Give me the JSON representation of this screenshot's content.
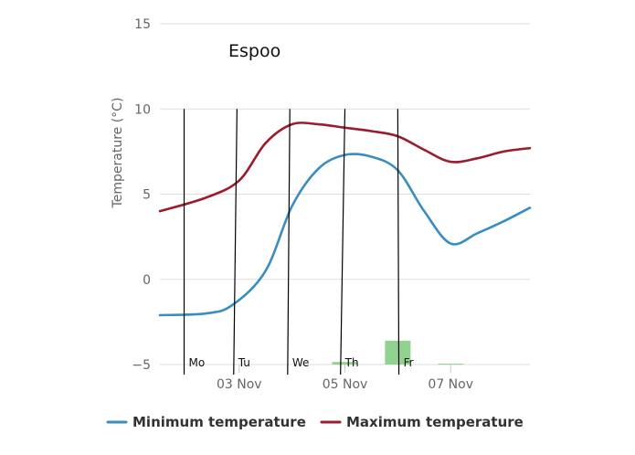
{
  "chart_data": {
    "type": "line",
    "title": "Espoo",
    "ylabel": "Temperature (°C)",
    "xlabel": "",
    "ylim": [
      -5,
      15
    ],
    "yticks": [
      15,
      10,
      5,
      0,
      -5
    ],
    "x_axis_start": "2023-11-01T12:00",
    "x_axis_end": "2023-11-08T12:00",
    "xticks": [
      {
        "date": "2023-11-03",
        "label": "03 Nov"
      },
      {
        "date": "2023-11-05",
        "label": "05 Nov"
      },
      {
        "date": "2023-11-07",
        "label": "07 Nov"
      }
    ],
    "grid": "horizontal",
    "legend_position": "bottom",
    "series": [
      {
        "name": "Minimum temperature",
        "color": "#3a8dc0",
        "points": [
          {
            "x": "2023-11-01T12:00",
            "y": -2.1
          },
          {
            "x": "2023-11-02T09:00",
            "y": -2.0
          },
          {
            "x": "2023-11-02T21:00",
            "y": -1.5
          },
          {
            "x": "2023-11-03T12:00",
            "y": 0.5
          },
          {
            "x": "2023-11-04T00:00",
            "y": 4.3
          },
          {
            "x": "2023-11-04T12:00",
            "y": 6.5
          },
          {
            "x": "2023-11-05T00:00",
            "y": 7.3
          },
          {
            "x": "2023-11-05T12:00",
            "y": 7.2
          },
          {
            "x": "2023-11-06T00:00",
            "y": 6.4
          },
          {
            "x": "2023-11-06T12:00",
            "y": 4.0
          },
          {
            "x": "2023-11-07T00:00",
            "y": 2.1
          },
          {
            "x": "2023-11-07T12:00",
            "y": 2.7
          },
          {
            "x": "2023-11-08T00:00",
            "y": 3.4
          },
          {
            "x": "2023-11-08T12:00",
            "y": 4.2
          }
        ]
      },
      {
        "name": "Maximum temperature",
        "color": "#9b1c2e",
        "points": [
          {
            "x": "2023-11-01T12:00",
            "y": 4.0
          },
          {
            "x": "2023-11-02T09:00",
            "y": 4.8
          },
          {
            "x": "2023-11-03T00:00",
            "y": 5.8
          },
          {
            "x": "2023-11-03T12:00",
            "y": 8.0
          },
          {
            "x": "2023-11-04T00:00",
            "y": 9.1
          },
          {
            "x": "2023-11-04T12:00",
            "y": 9.1
          },
          {
            "x": "2023-11-05T00:00",
            "y": 8.9
          },
          {
            "x": "2023-11-05T12:00",
            "y": 8.7
          },
          {
            "x": "2023-11-06T00:00",
            "y": 8.4
          },
          {
            "x": "2023-11-06T12:00",
            "y": 7.6
          },
          {
            "x": "2023-11-07T00:00",
            "y": 6.9
          },
          {
            "x": "2023-11-07T12:00",
            "y": 7.1
          },
          {
            "x": "2023-11-08T00:00",
            "y": 7.5
          },
          {
            "x": "2023-11-08T12:00",
            "y": 7.7
          }
        ]
      }
    ],
    "precipitation_bars": {
      "color": "#8fd38f",
      "bars": [
        {
          "x": "2023-11-05T00:00",
          "y_top": -4.85
        },
        {
          "x": "2023-11-06T00:00",
          "y_top": -3.6
        },
        {
          "x": "2023-11-07T00:00",
          "y_top": -4.95
        }
      ]
    },
    "day_markers": [
      {
        "label": "Mo",
        "x_top": "2023-11-01T23:00",
        "x_bottom": "2023-11-01T23:00"
      },
      {
        "label": "Tu",
        "x_top": "2023-11-02T23:00",
        "x_bottom": "2023-11-02T21:30"
      },
      {
        "label": "We",
        "x_top": "2023-11-03T23:00",
        "x_bottom": "2023-11-03T22:00"
      },
      {
        "label": "Th",
        "x_top": "2023-11-05T00:00",
        "x_bottom": "2023-11-04T22:00"
      },
      {
        "label": "Fr",
        "x_top": "2023-11-06T00:00",
        "x_bottom": "2023-11-06T00:30"
      }
    ]
  }
}
